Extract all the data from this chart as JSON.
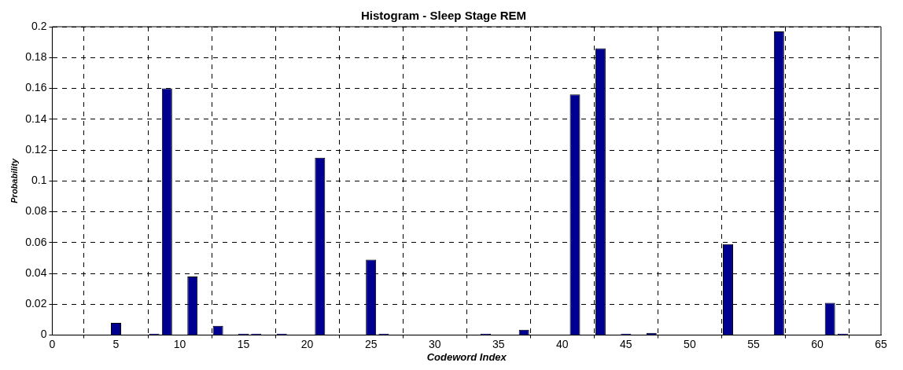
{
  "chart_data": {
    "type": "bar",
    "title": "Histogram - Sleep Stage REM",
    "xlabel": "Codeword Index",
    "ylabel": "Probability",
    "x": [
      5,
      8,
      9,
      11,
      13,
      15,
      16,
      18,
      21,
      25,
      26,
      34,
      37,
      41,
      43,
      45,
      47,
      53,
      57,
      61,
      62
    ],
    "values": [
      0.008,
      0.001,
      0.16,
      0.038,
      0.006,
      0.001,
      0.001,
      0.001,
      0.115,
      0.049,
      0.001,
      0.001,
      0.0035,
      0.156,
      0.186,
      0.001,
      0.0015,
      0.059,
      0.197,
      0.021,
      0.001
    ],
    "color": "#000090",
    "xlim": [
      0,
      65
    ],
    "xticks": [
      0,
      5,
      10,
      15,
      20,
      25,
      30,
      35,
      40,
      45,
      50,
      55,
      60,
      65
    ],
    "ylim": [
      0,
      0.2
    ],
    "yticks": [
      0,
      0.02,
      0.04,
      0.06,
      0.08,
      0.1,
      0.12,
      0.14,
      0.16,
      0.18,
      0.2
    ],
    "grid": true,
    "legend": false
  }
}
